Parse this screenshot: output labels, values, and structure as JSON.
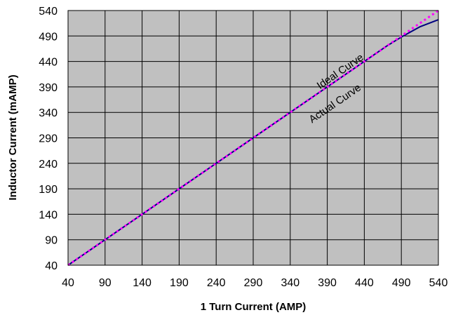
{
  "chart_data": {
    "type": "line",
    "title": "",
    "xlabel": "1 Turn Current (AMP)",
    "ylabel": "Inductor Current (mAMP)",
    "xlim": [
      40,
      540
    ],
    "ylim": [
      40,
      540
    ],
    "x_ticks": [
      40,
      90,
      140,
      190,
      240,
      290,
      340,
      390,
      440,
      490,
      540
    ],
    "y_ticks": [
      40,
      90,
      140,
      190,
      240,
      290,
      340,
      390,
      440,
      490,
      540
    ],
    "grid": true,
    "plot_background": "#c0c0c0",
    "series": [
      {
        "name": "Actual Curve",
        "color": "#000080",
        "style": "solid",
        "x": [
          40,
          90,
          140,
          190,
          240,
          290,
          340,
          390,
          440,
          470,
          490,
          515,
          540
        ],
        "y": [
          40,
          90,
          140,
          190,
          240,
          290,
          340,
          390,
          440,
          470,
          488,
          508,
          522
        ]
      },
      {
        "name": "Ideal Curve",
        "color": "#ff00ff",
        "style": "dotted",
        "x": [
          40,
          90,
          140,
          190,
          240,
          290,
          340,
          390,
          440,
          490,
          540
        ],
        "y": [
          40,
          90,
          140,
          190,
          240,
          290,
          340,
          390,
          440,
          490,
          540
        ]
      }
    ],
    "annotations": [
      {
        "text": "Ideal Curve",
        "at": [
          410,
          415
        ]
      },
      {
        "text": "Actual Curve",
        "at": [
          403,
          352
        ]
      }
    ]
  }
}
